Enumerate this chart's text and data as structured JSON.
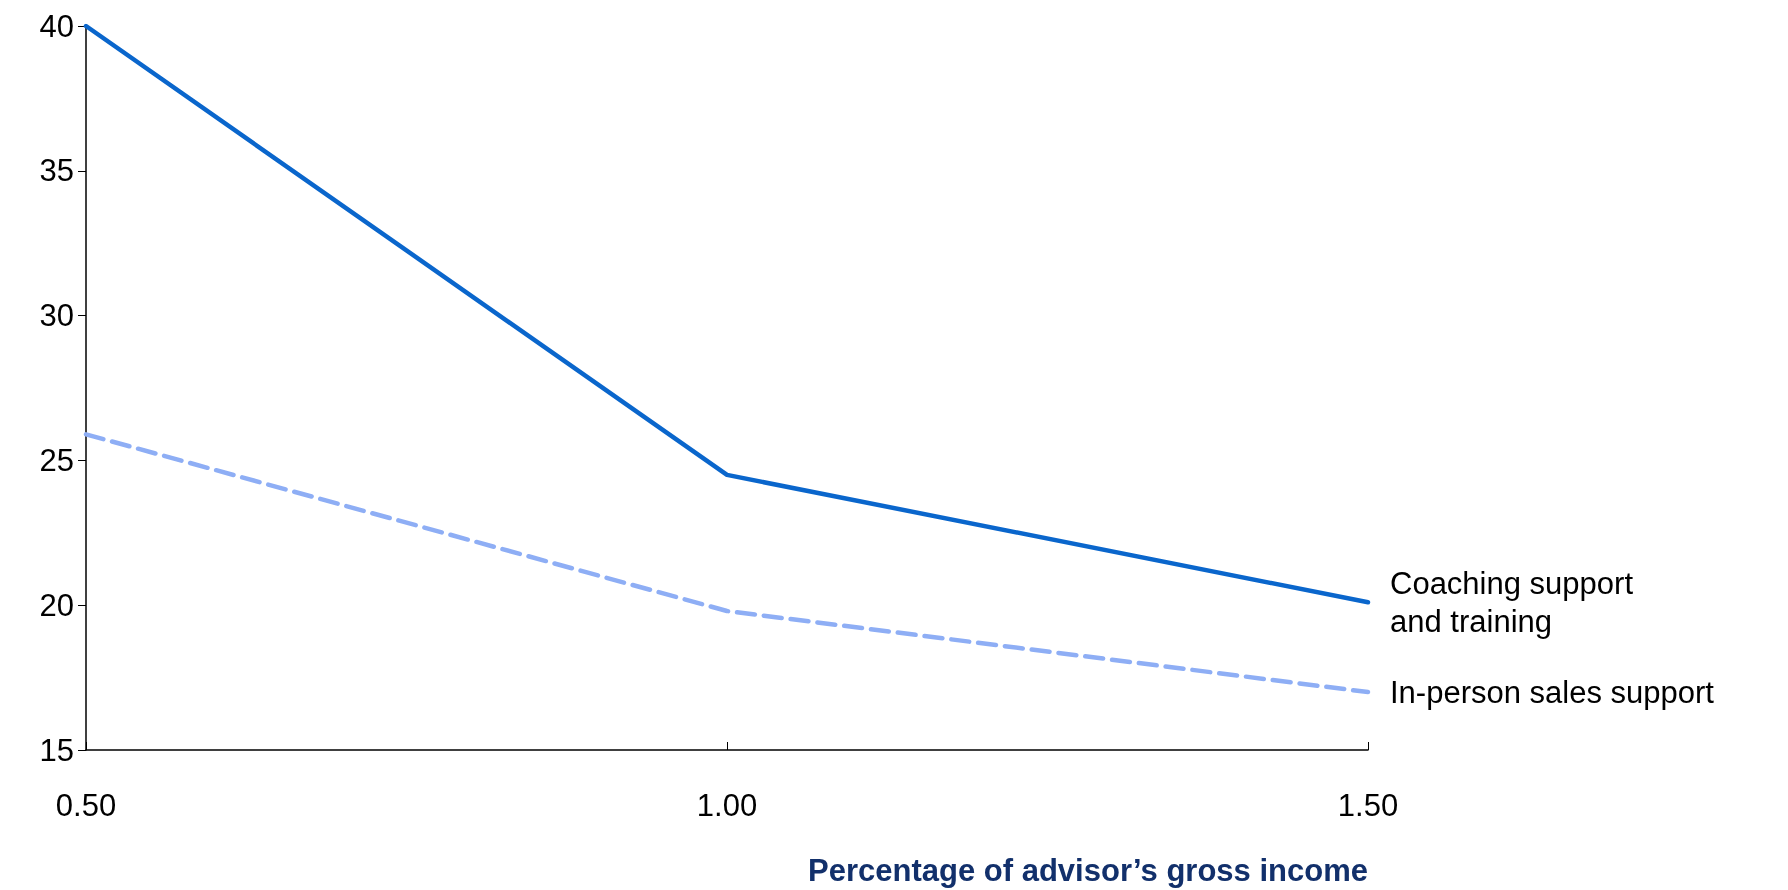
{
  "chart_data": {
    "type": "line",
    "xlabel": "Percentage of advisor’s gross income",
    "x": [
      0.5,
      1.0,
      1.5
    ],
    "series": [
      {
        "name": "Coaching support\nand training",
        "color": "#0a66cc",
        "line_style": "solid",
        "values": [
          40,
          24.5,
          20.1
        ]
      },
      {
        "name": "In-person sales support",
        "color": "#8eaef5",
        "line_style": "dashed",
        "values": [
          25.9,
          19.8,
          17.0
        ]
      }
    ],
    "xlim": [
      0.5,
      1.5
    ],
    "xticks": [
      {
        "value": 0.5,
        "label": "0.50"
      },
      {
        "value": 1.0,
        "label": "1.00"
      },
      {
        "value": 1.5,
        "label": "1.50"
      }
    ],
    "ylim": [
      15,
      40
    ],
    "yticks": [
      15,
      20,
      25,
      30,
      35,
      40
    ],
    "grid": false,
    "legend": false,
    "marker": "none"
  }
}
